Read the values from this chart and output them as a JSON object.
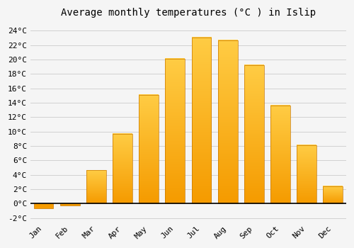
{
  "title": "Average monthly temperatures (°C ) in Islip",
  "months": [
    "Jan",
    "Feb",
    "Mar",
    "Apr",
    "May",
    "Jun",
    "Jul",
    "Aug",
    "Sep",
    "Oct",
    "Nov",
    "Dec"
  ],
  "values": [
    -0.7,
    -0.3,
    4.6,
    9.7,
    15.1,
    20.1,
    23.1,
    22.7,
    19.2,
    13.6,
    8.1,
    2.4
  ],
  "bar_color_top": "#FFCC44",
  "bar_color_bottom": "#F59B00",
  "bar_edge_color": "#C87800",
  "ylim": [
    -2.5,
    25
  ],
  "yticks": [
    -2,
    0,
    2,
    4,
    6,
    8,
    10,
    12,
    14,
    16,
    18,
    20,
    22,
    24
  ],
  "background_color": "#f5f5f5",
  "plot_bg_color": "#f5f5f5",
  "grid_color": "#cccccc",
  "title_fontsize": 10,
  "tick_fontsize": 8,
  "bar_width": 0.75
}
